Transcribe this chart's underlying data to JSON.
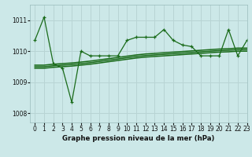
{
  "title": "Graphe pression niveau de la mer (hPa)",
  "bg_color": "#cce8e8",
  "grid_color": "#b8d4d4",
  "line_color": "#1a6b1a",
  "xlim": [
    -0.5,
    23
  ],
  "ylim": [
    1007.7,
    1011.5
  ],
  "yticks": [
    1008,
    1009,
    1010,
    1011
  ],
  "xticks": [
    0,
    1,
    2,
    3,
    4,
    5,
    6,
    7,
    8,
    9,
    10,
    11,
    12,
    13,
    14,
    15,
    16,
    17,
    18,
    19,
    20,
    21,
    22,
    23
  ],
  "line1_x": [
    0,
    1,
    2,
    3,
    4,
    5,
    6,
    7,
    8,
    9,
    10,
    11,
    12,
    13,
    14,
    15,
    16,
    17,
    18,
    19,
    20,
    21,
    22,
    23
  ],
  "line1_y": [
    1010.35,
    1011.1,
    1009.6,
    1009.45,
    1008.35,
    1010.0,
    1009.85,
    1009.85,
    1009.85,
    1009.85,
    1010.35,
    1010.45,
    1010.45,
    1010.45,
    1010.7,
    1010.35,
    1010.2,
    1010.15,
    1009.85,
    1009.85,
    1009.85,
    1010.7,
    1009.85,
    1010.35
  ],
  "line2_x": [
    0,
    1,
    2,
    3,
    4,
    5,
    6,
    7,
    8,
    9,
    10,
    11,
    12,
    13,
    14,
    15,
    16,
    17,
    18,
    19,
    20,
    21,
    22,
    23
  ],
  "line2_y": [
    1009.55,
    1009.55,
    1009.58,
    1009.6,
    1009.62,
    1009.65,
    1009.68,
    1009.72,
    1009.76,
    1009.8,
    1009.84,
    1009.88,
    1009.91,
    1009.93,
    1009.95,
    1009.97,
    1009.99,
    1010.01,
    1010.03,
    1010.05,
    1010.07,
    1010.08,
    1010.1,
    1010.1
  ],
  "line3_x": [
    0,
    1,
    2,
    3,
    4,
    5,
    6,
    7,
    8,
    9,
    10,
    11,
    12,
    13,
    14,
    15,
    16,
    17,
    18,
    19,
    20,
    21,
    22,
    23
  ],
  "line3_y": [
    1009.5,
    1009.5,
    1009.53,
    1009.55,
    1009.57,
    1009.6,
    1009.63,
    1009.67,
    1009.71,
    1009.75,
    1009.79,
    1009.83,
    1009.86,
    1009.88,
    1009.9,
    1009.92,
    1009.94,
    1009.96,
    1009.98,
    1010.0,
    1010.02,
    1010.03,
    1010.05,
    1010.05
  ],
  "line4_x": [
    0,
    1,
    2,
    3,
    4,
    5,
    6,
    7,
    8,
    9,
    10,
    11,
    12,
    13,
    14,
    15,
    16,
    17,
    18,
    19,
    20,
    21,
    22,
    23
  ],
  "line4_y": [
    1009.45,
    1009.45,
    1009.48,
    1009.5,
    1009.52,
    1009.55,
    1009.58,
    1009.62,
    1009.66,
    1009.7,
    1009.74,
    1009.78,
    1009.81,
    1009.83,
    1009.85,
    1009.87,
    1009.89,
    1009.91,
    1009.93,
    1009.95,
    1009.97,
    1009.98,
    1010.0,
    1010.0
  ]
}
